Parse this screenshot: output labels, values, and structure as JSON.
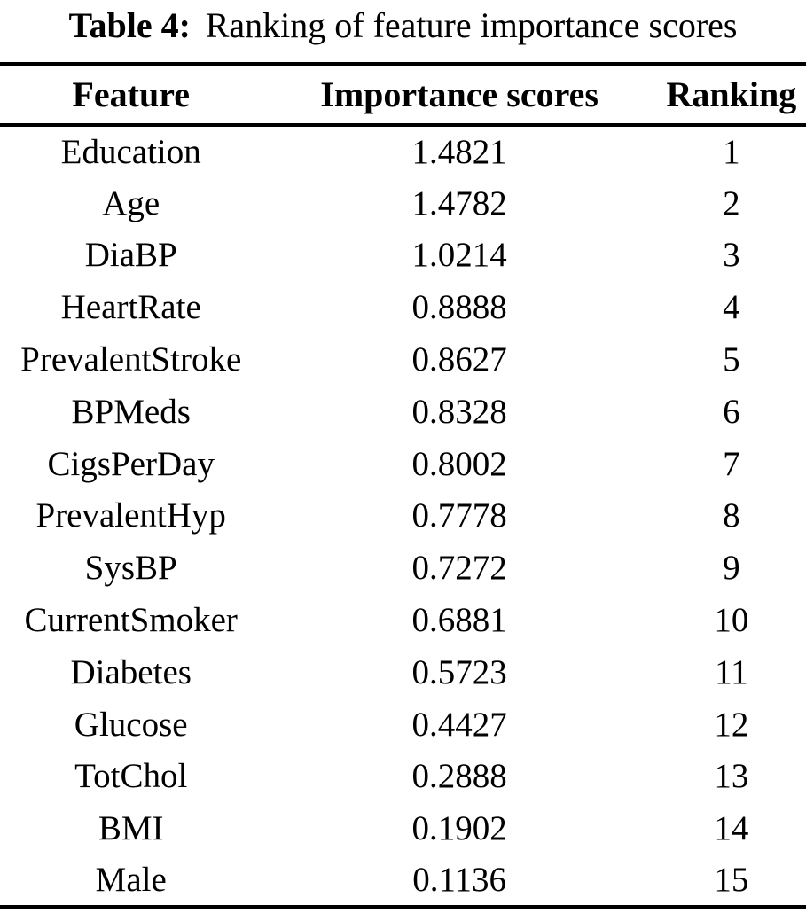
{
  "caption": {
    "label": "Table 4:",
    "text": "Ranking of feature importance scores"
  },
  "colors": {
    "text": "#000000",
    "background": "#ffffff",
    "rule": "#000000"
  },
  "table": {
    "columns": [
      "Feature",
      "Importance scores",
      "Ranking"
    ],
    "rows": [
      {
        "feature": "Education",
        "score": "1.4821",
        "ranking": "1"
      },
      {
        "feature": "Age",
        "score": "1.4782",
        "ranking": "2"
      },
      {
        "feature": "DiaBP",
        "score": "1.0214",
        "ranking": "3"
      },
      {
        "feature": "HeartRate",
        "score": "0.8888",
        "ranking": "4"
      },
      {
        "feature": "PrevalentStroke",
        "score": "0.8627",
        "ranking": "5"
      },
      {
        "feature": "BPMeds",
        "score": "0.8328",
        "ranking": "6"
      },
      {
        "feature": "CigsPerDay",
        "score": "0.8002",
        "ranking": "7"
      },
      {
        "feature": "PrevalentHyp",
        "score": "0.7778",
        "ranking": "8"
      },
      {
        "feature": "SysBP",
        "score": "0.7272",
        "ranking": "9"
      },
      {
        "feature": "CurrentSmoker",
        "score": "0.6881",
        "ranking": "10"
      },
      {
        "feature": "Diabetes",
        "score": "0.5723",
        "ranking": "11"
      },
      {
        "feature": "Glucose",
        "score": "0.4427",
        "ranking": "12"
      },
      {
        "feature": "TotChol",
        "score": "0.2888",
        "ranking": "13"
      },
      {
        "feature": "BMI",
        "score": "0.1902",
        "ranking": "14"
      },
      {
        "feature": "Male",
        "score": "0.1136",
        "ranking": "15"
      }
    ]
  }
}
